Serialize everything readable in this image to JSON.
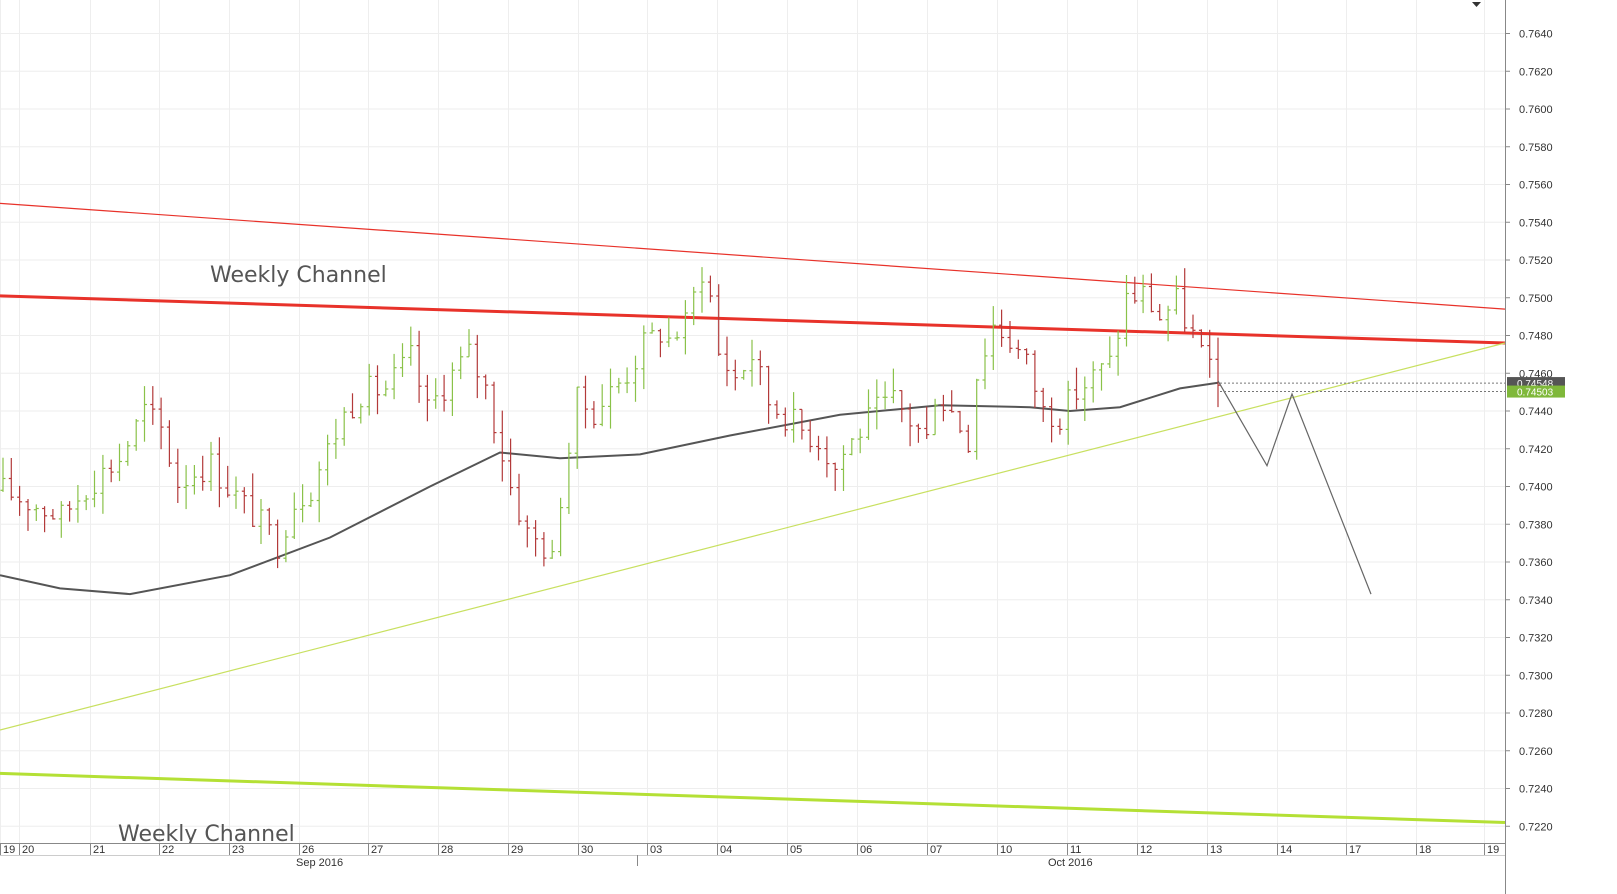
{
  "chart_data": {
    "type": "candlestick",
    "title": "",
    "y_axis": {
      "position": "right",
      "ticks": [
        "0.7640",
        "0.7620",
        "0.7600",
        "0.7580",
        "0.7560",
        "0.7540",
        "0.7520",
        "0.7500",
        "0.7480",
        "0.7460",
        "0.7440",
        "0.7420",
        "0.7400",
        "0.7380",
        "0.7360",
        "0.7340",
        "0.7320",
        "0.7300",
        "0.7280",
        "0.7260",
        "0.7240",
        "0.7220"
      ],
      "ylim": [
        0.7211,
        0.7657
      ]
    },
    "x_axis": {
      "day_labels": [
        "19",
        "20",
        "21",
        "22",
        "23",
        "26",
        "27",
        "28",
        "29",
        "30",
        "03",
        "04",
        "05",
        "06",
        "07",
        "10",
        "11",
        "12",
        "13",
        "14",
        "17",
        "18",
        "19"
      ],
      "month_labels": [
        "Sep 2016",
        "Oct 2016"
      ]
    },
    "price_badges": [
      {
        "value": "0.74548",
        "color": "#555555"
      },
      {
        "value": "0.74503",
        "color": "#7fb83a"
      }
    ],
    "annotations": [
      "Weekly Channel",
      "Weekly Channel"
    ],
    "candle_colors": {
      "up": "#8ac249",
      "down": "#b33a3a"
    },
    "candle_anchors": [
      [
        0,
        0.7398
      ],
      [
        3,
        0.7392
      ],
      [
        7,
        0.7384
      ],
      [
        10,
        0.74
      ],
      [
        14,
        0.7415
      ],
      [
        17,
        0.744
      ],
      [
        19,
        0.743
      ],
      [
        21,
        0.7402
      ],
      [
        23,
        0.7408
      ],
      [
        25,
        0.7412
      ],
      [
        27,
        0.74
      ],
      [
        30,
        0.7385
      ],
      [
        33,
        0.737
      ],
      [
        35,
        0.7392
      ],
      [
        37,
        0.74
      ],
      [
        38,
        0.741
      ],
      [
        41,
        0.7438
      ],
      [
        43,
        0.745
      ],
      [
        46,
        0.7452
      ],
      [
        49,
        0.7468
      ],
      [
        51,
        0.744
      ],
      [
        54,
        0.746
      ],
      [
        56,
        0.747
      ],
      [
        58,
        0.7452
      ],
      [
        61,
        0.74
      ],
      [
        63,
        0.7375
      ],
      [
        65,
        0.7368
      ],
      [
        66,
        0.736
      ],
      [
        67,
        0.7395
      ],
      [
        69,
        0.7445
      ],
      [
        71,
        0.744
      ],
      [
        73,
        0.745
      ],
      [
        75,
        0.746
      ],
      [
        77,
        0.7475
      ],
      [
        79,
        0.7482
      ],
      [
        80,
        0.7478
      ],
      [
        82,
        0.7486
      ],
      [
        84,
        0.7515
      ],
      [
        85,
        0.75
      ],
      [
        86,
        0.747
      ],
      [
        88,
        0.7458
      ],
      [
        90,
        0.747
      ],
      [
        92,
        0.7445
      ],
      [
        94,
        0.7438
      ],
      [
        96,
        0.743
      ],
      [
        98,
        0.7425
      ],
      [
        100,
        0.741
      ],
      [
        101,
        0.7418
      ],
      [
        103,
        0.743
      ],
      [
        105,
        0.744
      ],
      [
        107,
        0.7445
      ],
      [
        109,
        0.7435
      ],
      [
        111,
        0.7425
      ],
      [
        112,
        0.745
      ],
      [
        114,
        0.744
      ],
      [
        116,
        0.7425
      ],
      [
        117,
        0.746
      ],
      [
        119,
        0.7486
      ],
      [
        121,
        0.7478
      ],
      [
        123,
        0.7465
      ],
      [
        125,
        0.744
      ],
      [
        127,
        0.7438
      ],
      [
        129,
        0.745
      ],
      [
        131,
        0.7458
      ],
      [
        133,
        0.7465
      ],
      [
        135,
        0.75
      ],
      [
        137,
        0.7502
      ],
      [
        139,
        0.749
      ],
      [
        141,
        0.7498
      ],
      [
        143,
        0.748
      ],
      [
        145,
        0.746
      ],
      [
        146,
        0.7452
      ]
    ],
    "lines": [
      {
        "name": "",
        "color": "#e8322a",
        "width": 1.2,
        "points": [
          [
            0,
            0.755
          ],
          [
            1505,
            0.7494
          ]
        ]
      },
      {
        "name": "",
        "color": "#e8322a",
        "width": 3,
        "points": [
          [
            0,
            0.7501
          ],
          [
            1505,
            0.7476
          ]
        ]
      },
      {
        "name": "",
        "color": "#c8e060",
        "width": 1.2,
        "points": [
          [
            0,
            0.7271
          ],
          [
            1505,
            0.7476
          ]
        ]
      },
      {
        "name": "",
        "color": "#b4e035",
        "width": 3,
        "points": [
          [
            0,
            0.7248
          ],
          [
            1505,
            0.7222
          ]
        ]
      },
      {
        "name": "",
        "color": "#555555",
        "width": 2,
        "points": [
          [
            0,
            0.7353
          ],
          [
            60,
            0.7346
          ],
          [
            130,
            0.7343
          ],
          [
            230,
            0.7353
          ],
          [
            330,
            0.7373
          ],
          [
            430,
            0.74
          ],
          [
            500,
            0.7418
          ],
          [
            560,
            0.7415
          ],
          [
            640,
            0.7417
          ],
          [
            730,
            0.7427
          ],
          [
            840,
            0.7438
          ],
          [
            940,
            0.7443
          ],
          [
            1030,
            0.7442
          ],
          [
            1070,
            0.744
          ],
          [
            1120,
            0.7442
          ],
          [
            1180,
            0.7452
          ],
          [
            1218,
            0.7455
          ]
        ]
      },
      {
        "name": "",
        "color": "#666666",
        "width": 1.2,
        "points": [
          [
            1218,
            0.7456
          ],
          [
            1267,
            0.7411
          ],
          [
            1292,
            0.7449
          ],
          [
            1371,
            0.7343
          ]
        ]
      }
    ]
  }
}
